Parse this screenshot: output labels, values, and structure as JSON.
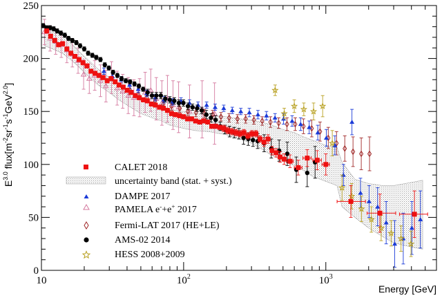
{
  "chart_data": {
    "type": "scatter",
    "title": "",
    "xlabel": "Energy [GeV]",
    "ylabel_main": "E",
    "ylabel_exp": "3.0",
    "ylabel_rest": " flux[m",
    "ylabel_unit_exp": "-2",
    "ylabel_sr": "sr",
    "ylabel_sr_exp": "-1",
    "ylabel_s": "s",
    "ylabel_s_exp": "-1",
    "ylabel_gev": "GeV",
    "ylabel_gev_exp": "2.0",
    "ylabel_close": "]",
    "xscale": "log",
    "xlim": [
      10,
      6000
    ],
    "ylim": [
      0,
      250
    ],
    "x_ticks": [
      {
        "v": 10,
        "base": "10",
        "exp": ""
      },
      {
        "v": 100,
        "base": "10",
        "exp": "2"
      },
      {
        "v": 1000,
        "base": "10",
        "exp": "3"
      }
    ],
    "y_ticks": [
      0,
      50,
      100,
      150,
      200,
      250
    ],
    "legend_position": "lower-left",
    "colors": {
      "calet": "#ee1111",
      "dampe": "#1b3bd8",
      "pamela": "#d4789e",
      "fermi": "#a02828",
      "ams": "#000000",
      "hess": "#b8a020",
      "band": "#b8b8b8"
    },
    "band": {
      "label": "uncertainty band (stat. + syst.)",
      "x": [
        10.5,
        12,
        14,
        16,
        18,
        20,
        25,
        30,
        35,
        40,
        50,
        60,
        70,
        80,
        100,
        120,
        150,
        200,
        250,
        300,
        350,
        400,
        500,
        600,
        700,
        800,
        1000,
        1200,
        1300,
        1600,
        2000,
        2500,
        3000,
        4000,
        4800
      ],
      "upper": [
        226,
        225,
        223,
        215,
        208,
        202,
        190,
        182,
        176,
        170,
        162,
        158,
        155,
        152,
        150,
        148,
        147,
        145,
        143,
        142,
        140,
        138,
        133,
        130,
        126,
        123,
        118,
        116,
        102,
        86,
        82,
        80,
        80,
        83,
        85
      ],
      "lower": [
        212,
        209,
        205,
        199,
        193,
        187,
        175,
        168,
        161,
        156,
        148,
        144,
        141,
        137,
        134,
        132,
        131,
        128,
        124,
        120,
        115,
        110,
        103,
        99,
        94,
        89,
        84,
        80,
        60,
        50,
        40,
        32,
        26,
        22,
        20
      ]
    },
    "series": [
      {
        "name": "CALET 2018",
        "key": "calet",
        "marker": "square",
        "filled": true,
        "x": [
          10.9,
          11.6,
          12.4,
          13.2,
          14.1,
          15.1,
          16.1,
          17.2,
          18.4,
          19.6,
          20.9,
          22.3,
          23.8,
          25.4,
          27.1,
          29.0,
          30.9,
          33.0,
          35.2,
          37.6,
          40.1,
          42.8,
          45.7,
          48.8,
          52.1,
          55.6,
          59.3,
          63.3,
          67.6,
          72.1,
          77.0,
          82.2,
          87.7,
          93.6,
          99.9,
          106.6,
          113.8,
          121.5,
          129.7,
          138.4,
          147.7,
          157.6,
          168.2,
          179.6,
          191.6,
          204.5,
          218.3,
          233.0,
          248.7,
          265.4,
          283.3,
          302.3,
          322.7,
          344.4,
          367.6,
          392.3,
          418.7,
          446.9,
          477.0,
          509.1,
          560,
          640,
          740,
          870,
          1000,
          1500,
          2400,
          4200
        ],
        "y": [
          226,
          221,
          217,
          213,
          214,
          209,
          205,
          202,
          199,
          196,
          193,
          188,
          186,
          184,
          182,
          179,
          181,
          178,
          175,
          173,
          170,
          168,
          165,
          163,
          161,
          160,
          157,
          156,
          154,
          153,
          151,
          148,
          147,
          146,
          145,
          143,
          143,
          141,
          140,
          141,
          140,
          136,
          136,
          135,
          134,
          132,
          131,
          130,
          129,
          130,
          127,
          129,
          129,
          124,
          121,
          124,
          113,
          111,
          107,
          105,
          103,
          97,
          106,
          104,
          100,
          65,
          54,
          53
        ],
        "xerr_lo": [
          0,
          0,
          0,
          0,
          0,
          0,
          0,
          0,
          0,
          0,
          0,
          0,
          0,
          0,
          0,
          0,
          0,
          0,
          0,
          0,
          0,
          0,
          0,
          0,
          0,
          0,
          0,
          0,
          0,
          0,
          0,
          0,
          0,
          0,
          0,
          0,
          0,
          0,
          0,
          0,
          0,
          0,
          0,
          0,
          0,
          0,
          0,
          0,
          0,
          0,
          0,
          0,
          0,
          0,
          0,
          0,
          0,
          0,
          0,
          0,
          30,
          40,
          50,
          60,
          60,
          300,
          450,
          900
        ],
        "xerr_hi": [
          0,
          0,
          0,
          0,
          0,
          0,
          0,
          0,
          0,
          0,
          0,
          0,
          0,
          0,
          0,
          0,
          0,
          0,
          0,
          0,
          0,
          0,
          0,
          0,
          0,
          0,
          0,
          0,
          0,
          0,
          0,
          0,
          0,
          0,
          0,
          0,
          0,
          0,
          0,
          0,
          0,
          0,
          0,
          0,
          0,
          0,
          0,
          0,
          0,
          0,
          0,
          0,
          0,
          0,
          0,
          0,
          0,
          0,
          0,
          0,
          30,
          40,
          50,
          60,
          60,
          400,
          700,
          1000
        ],
        "yerr": [
          2,
          2,
          2,
          2,
          2,
          2,
          2,
          2,
          2,
          2,
          2,
          2,
          2,
          2,
          2,
          2,
          2,
          2,
          2,
          2,
          2,
          2,
          2,
          2,
          2,
          2,
          2,
          2,
          2,
          2,
          2,
          2,
          2,
          2,
          2,
          2,
          2,
          2,
          2,
          2,
          2,
          2,
          2,
          2,
          3,
          3,
          3,
          3,
          3,
          3,
          3,
          3,
          3,
          3,
          4,
          4,
          4,
          4,
          5,
          5,
          6,
          7,
          8,
          9,
          10,
          15,
          18,
          22
        ]
      },
      {
        "name": "DAMPE 2017",
        "key": "dampe",
        "marker": "triangle",
        "filled": true,
        "x": [
          27.5,
          31.6,
          36.3,
          41.7,
          47.9,
          55.0,
          63.2,
          72.6,
          83.4,
          95.8,
          110.0,
          126.3,
          145.1,
          166.6,
          191.4,
          219.8,
          252.4,
          289.9,
          333.0,
          382.4,
          439.2,
          504.4,
          579.3,
          665.3,
          764.1,
          877.6,
          1007.9,
          1157.6,
          1329.5,
          1526.9,
          1753.7,
          2014.1,
          2313.2,
          2656.8,
          3051.4,
          3504.5,
          4025.0,
          4622.7
        ],
        "y": [
          188,
          183,
          180,
          175,
          171,
          167,
          163,
          161,
          159,
          160,
          158,
          156,
          156,
          154,
          153,
          151,
          150,
          149,
          147,
          146,
          144,
          143,
          141,
          138,
          135,
          130,
          125,
          118,
          90,
          140,
          73,
          65,
          60,
          45,
          25,
          30,
          40,
          48
        ],
        "yerr": [
          3,
          3,
          3,
          3,
          3,
          3,
          3,
          3,
          3,
          3,
          3,
          3,
          3,
          3,
          3,
          3,
          3,
          4,
          4,
          4,
          4,
          5,
          5,
          6,
          6,
          7,
          8,
          9,
          10,
          12,
          14,
          15,
          18,
          20,
          22,
          24,
          25,
          27
        ]
      },
      {
        "name": "PAMELA e",
        "name_sup1": "-",
        "name_mid": "+e",
        "name_sup2": "+",
        "name_tail": " 2017",
        "key": "pamela",
        "marker": "triangle",
        "filled": false,
        "x": [
          10.5,
          11.5,
          12.6,
          13.8,
          15.1,
          16.5,
          18.1,
          19.8,
          21.7,
          23.7,
          26.0,
          28.4,
          31.1,
          34.1,
          37.3,
          40.8,
          44.7,
          49.0,
          53.6,
          58.7,
          64.2,
          70.3,
          76.9,
          84.2,
          92.2,
          110,
          135,
          165
        ],
        "y": [
          225,
          219,
          216,
          213,
          208,
          204,
          198,
          185,
          181,
          184,
          179,
          174,
          182,
          172,
          169,
          165,
          163,
          163,
          168,
          170,
          162,
          158,
          162,
          156,
          154,
          150,
          152,
          148
        ],
        "yerr": [
          12,
          12,
          12,
          12,
          12,
          12,
          12,
          14,
          14,
          14,
          15,
          15,
          15,
          16,
          16,
          17,
          17,
          18,
          19,
          20,
          20,
          21,
          22,
          23,
          24,
          25,
          27,
          29
        ]
      },
      {
        "name": "Fermi-LAT 2017 (HE+LE)",
        "key": "fermi",
        "marker": "diamond",
        "filled": false,
        "x": [
          42,
          48,
          55,
          63,
          72,
          82,
          94,
          107,
          122,
          140,
          160,
          183,
          209,
          239,
          273,
          312,
          357,
          408,
          466,
          533,
          609,
          696,
          796,
          910,
          1040,
          1189,
          1359,
          1553,
          1775,
          2029
        ],
        "y": [
          170,
          166,
          163,
          160,
          157,
          155,
          153,
          150,
          149,
          148,
          147,
          145,
          144,
          143,
          143,
          142,
          141,
          140,
          139,
          138,
          138,
          136,
          134,
          131,
          125,
          120,
          115,
          112,
          110,
          110
        ],
        "yerr": [
          4,
          4,
          4,
          4,
          4,
          4,
          4,
          4,
          4,
          4,
          4,
          4,
          4,
          4,
          4,
          4,
          4,
          5,
          5,
          6,
          6,
          7,
          8,
          9,
          10,
          11,
          12,
          14,
          15,
          16
        ]
      },
      {
        "name": "AMS-02 2014",
        "key": "ams",
        "marker": "circle",
        "filled": true,
        "x": [
          10.3,
          10.9,
          11.5,
          12.2,
          12.9,
          13.7,
          14.6,
          15.5,
          16.5,
          17.6,
          18.7,
          20.0,
          21.3,
          22.8,
          24.3,
          26.0,
          27.9,
          29.8,
          31.9,
          34.2,
          36.6,
          39.2,
          42.0,
          45.1,
          48.4,
          51.9,
          55.8,
          59.9,
          64.3,
          69.1,
          74.3,
          79.9,
          86.0,
          92.5,
          99.6,
          107.2,
          115.5,
          124.4,
          134.0,
          144.4,
          155.7,
          167.8,
          180.9,
          195.1,
          210.4,
          226.9,
          244.7,
          264.0,
          284.8,
          307.3,
          331.6,
          367.9,
          413.6,
          469.5,
          535.6,
          620,
          740,
          840
        ],
        "y": [
          231,
          229,
          229,
          228,
          226,
          224,
          222,
          219,
          217,
          215,
          212,
          209,
          205,
          203,
          201,
          199,
          194,
          191,
          187,
          184,
          181,
          179,
          178,
          176,
          174,
          171,
          168,
          165,
          165,
          165,
          162,
          161,
          160,
          158,
          158,
          155,
          154,
          153,
          151,
          147,
          144,
          142,
          136,
          133,
          131,
          130,
          129,
          125,
          124,
          123,
          122,
          120,
          115,
          113,
          110,
          95,
          92,
          102
        ],
        "yerr": [
          2,
          2,
          2,
          2,
          2,
          2,
          2,
          2,
          2,
          2,
          2,
          2,
          2,
          2,
          2,
          2,
          2,
          2,
          2,
          2,
          2,
          2,
          2,
          2,
          2,
          2,
          3,
          3,
          3,
          3,
          3,
          3,
          3,
          3,
          3,
          3,
          3,
          3,
          3,
          4,
          4,
          4,
          4,
          4,
          5,
          5,
          5,
          6,
          6,
          6,
          7,
          8,
          9,
          10,
          11,
          12,
          13,
          15
        ]
      },
      {
        "name": "HESS 2008+2009",
        "key": "hess",
        "marker": "star",
        "filled": false,
        "x": [
          440,
          510,
          600,
          700,
          820,
          950,
          1110,
          1300,
          1520,
          1780,
          2090,
          2450,
          2880,
          3380,
          3970
        ],
        "y": [
          170,
          148,
          155,
          152,
          150,
          155,
          120,
          78,
          70,
          58,
          48,
          40,
          35,
          30,
          25
        ],
        "yerr": [
          5,
          5,
          6,
          6,
          8,
          10,
          12,
          12,
          12,
          12,
          12,
          12,
          12,
          12,
          12
        ]
      }
    ]
  }
}
